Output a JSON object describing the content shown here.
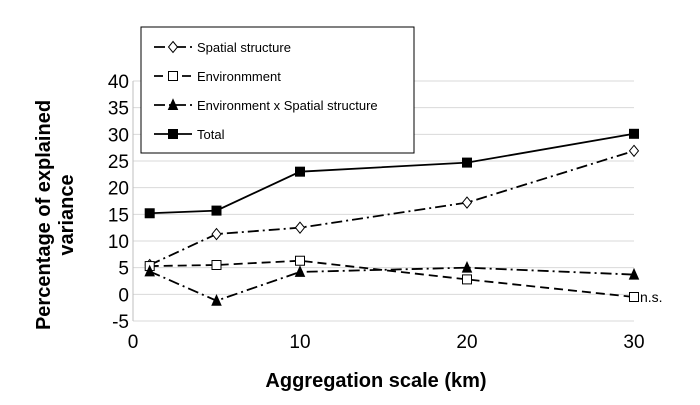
{
  "chart_data": {
    "type": "line",
    "title": "",
    "xlabel": "Aggregation scale (km)",
    "ylabel": "Percentage of explained variance",
    "xlim": [
      0,
      30
    ],
    "ylim": [
      -5,
      40
    ],
    "xticks": [
      0,
      10,
      20,
      30
    ],
    "yticks": [
      -5,
      0,
      5,
      10,
      15,
      20,
      25,
      30,
      35,
      40
    ],
    "grid": "horizontal",
    "legend_position": "top-left",
    "series": [
      {
        "name": "Spatial structure",
        "marker": "open-diamond",
        "line_style": "dash-dot",
        "x": [
          1,
          5,
          10,
          20,
          30
        ],
        "y": [
          5.5,
          11.3,
          12.5,
          17.2,
          26.9
        ]
      },
      {
        "name": "Environmment",
        "marker": "open-square",
        "line_style": "dashed",
        "x": [
          1,
          5,
          10,
          20,
          30
        ],
        "y": [
          5.3,
          5.5,
          6.3,
          2.8,
          -0.5
        ]
      },
      {
        "name": "Environment x Spatial structure",
        "marker": "filled-triangle",
        "line_style": "dash-dot",
        "x": [
          1,
          5,
          10,
          20,
          30
        ],
        "y": [
          4.3,
          -1.2,
          4.2,
          5.0,
          3.7
        ]
      },
      {
        "name": "Total",
        "marker": "filled-square",
        "line_style": "solid",
        "x": [
          1,
          5,
          10,
          20,
          30
        ],
        "y": [
          15.2,
          15.7,
          23.0,
          24.7,
          30.1
        ]
      }
    ],
    "annotations": [
      {
        "text": "n.s.",
        "series": "Environmment",
        "x": 30
      }
    ]
  },
  "colors": {
    "series": "#000000",
    "grid": "#d9d9d9",
    "marker_fill_open": "#ffffff"
  }
}
